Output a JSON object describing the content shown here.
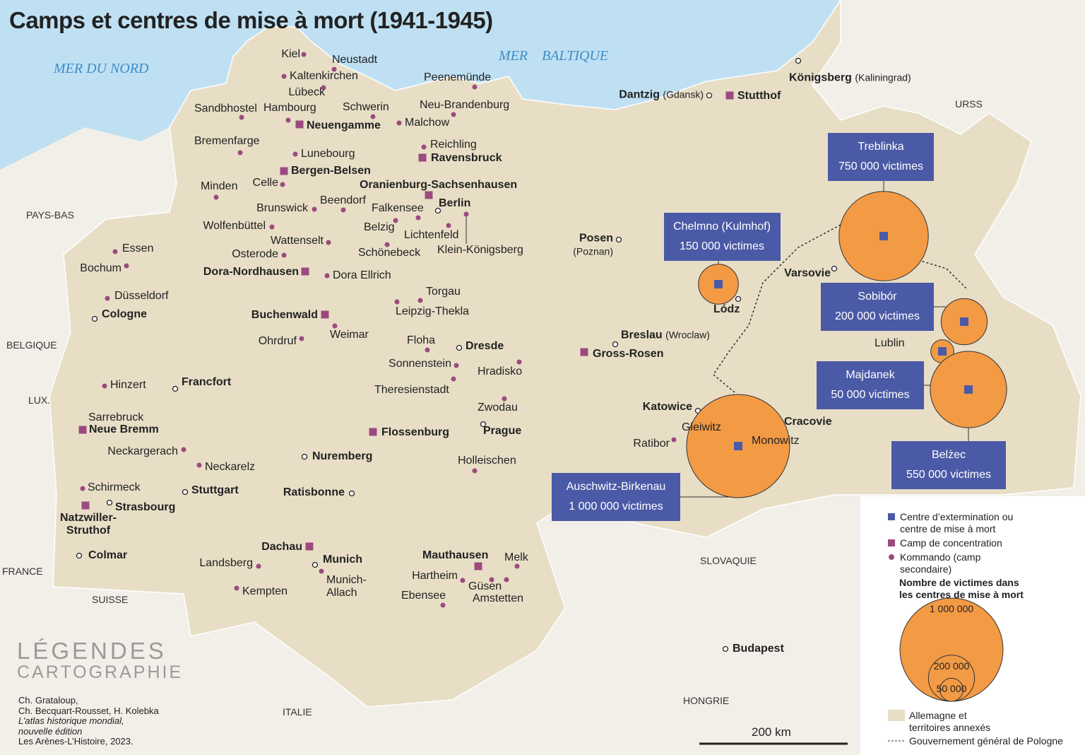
{
  "title": "Camps et centres de mise à mort (1941-1945)",
  "seas": [
    "MER DU NORD",
    "MER    BALTIQUE"
  ],
  "countries": [
    "PAYS-BAS",
    "BELGIQUE",
    "LUX.",
    "FRANCE",
    "SUISSE",
    "ITALIE",
    "HONGRIE",
    "SLOVAQUIE",
    "URSS"
  ],
  "places": [
    {
      "name": "Kiel",
      "kind": "kommando"
    },
    {
      "name": "Neustadt",
      "kind": "kommando"
    },
    {
      "name": "Kaltenkirchen",
      "kind": "kommando"
    },
    {
      "name": "Lübeck",
      "kind": "kommando"
    },
    {
      "name": "Sandbhostel",
      "kind": "kommando"
    },
    {
      "name": "Hambourg",
      "kind": "kommando"
    },
    {
      "name": "Schwerin",
      "kind": "kommando"
    },
    {
      "name": "Malchow",
      "kind": "kommando"
    },
    {
      "name": "Peenemünde",
      "kind": "kommando"
    },
    {
      "name": "Neu-Brandenburg",
      "kind": "kommando"
    },
    {
      "name": "Reichling",
      "kind": "kommando"
    },
    {
      "name": "Bremenfarge",
      "kind": "kommando"
    },
    {
      "name": "Lunebourg",
      "kind": "kommando"
    },
    {
      "name": "Celle",
      "kind": "kommando"
    },
    {
      "name": "Minden",
      "kind": "kommando"
    },
    {
      "name": "Brunswick",
      "kind": "kommando"
    },
    {
      "name": "Beendorf",
      "kind": "kommando"
    },
    {
      "name": "Falkensee",
      "kind": "kommando"
    },
    {
      "name": "Belzig",
      "kind": "kommando"
    },
    {
      "name": "Lichtenfeld",
      "kind": "kommando"
    },
    {
      "name": "Klein-Königsberg",
      "kind": "kommando"
    },
    {
      "name": "Wolfenbüttel",
      "kind": "kommando"
    },
    {
      "name": "Wattenselt",
      "kind": "kommando"
    },
    {
      "name": "Schönebeck",
      "kind": "kommando"
    },
    {
      "name": "Osterode",
      "kind": "kommando"
    },
    {
      "name": "Dora Ellrich",
      "kind": "kommando"
    },
    {
      "name": "Essen",
      "kind": "kommando"
    },
    {
      "name": "Bochum",
      "kind": "kommando"
    },
    {
      "name": "Düsseldorf",
      "kind": "kommando"
    },
    {
      "name": "Torgau",
      "kind": "kommando"
    },
    {
      "name": "Leipzig-Thekla",
      "kind": "kommando"
    },
    {
      "name": "Weimar",
      "kind": "kommando"
    },
    {
      "name": "Ohrdruf",
      "kind": "kommando"
    },
    {
      "name": "Floha",
      "kind": "kommando"
    },
    {
      "name": "Sonnenstein",
      "kind": "kommando"
    },
    {
      "name": "Hradisko",
      "kind": "kommando"
    },
    {
      "name": "Theresienstadt",
      "kind": "kommando"
    },
    {
      "name": "Zwodau",
      "kind": "kommando"
    },
    {
      "name": "Hinzert",
      "kind": "kommando"
    },
    {
      "name": "Neckargerach",
      "kind": "kommando"
    },
    {
      "name": "Neckarelz",
      "kind": "kommando"
    },
    {
      "name": "Holleischen",
      "kind": "kommando"
    },
    {
      "name": "Schirmeck",
      "kind": "kommando"
    },
    {
      "name": "Landsberg",
      "kind": "kommando"
    },
    {
      "name": "Kempten",
      "kind": "kommando"
    },
    {
      "name": "Hartheim",
      "kind": "kommando"
    },
    {
      "name": "Ebensee",
      "kind": "kommando"
    },
    {
      "name": "Güsen",
      "kind": "kommando"
    },
    {
      "name": "Amstetten",
      "kind": "kommando"
    },
    {
      "name": "Melk",
      "kind": "kommando"
    },
    {
      "name": "Munich-Allach",
      "kind": "kommando"
    },
    {
      "name": "Gleiwitz",
      "kind": "kommando"
    },
    {
      "name": "Ratibor",
      "kind": "kommando"
    },
    {
      "name": "Monowitz",
      "kind": "kommando"
    },
    {
      "name": "Neuengamme",
      "kind": "camp"
    },
    {
      "name": "Ravensbruck",
      "kind": "camp"
    },
    {
      "name": "Bergen-Belsen",
      "kind": "camp"
    },
    {
      "name": "Oranienburg-Sachsenhausen",
      "kind": "camp"
    },
    {
      "name": "Dora-Nordhausen",
      "kind": "camp"
    },
    {
      "name": "Buchenwald",
      "kind": "camp"
    },
    {
      "name": "Gross-Rosen",
      "kind": "camp"
    },
    {
      "name": "Flossenburg",
      "kind": "camp"
    },
    {
      "name": "Neue Bremm",
      "kind": "camp"
    },
    {
      "name": "Natzwiller-Struthof",
      "kind": "camp"
    },
    {
      "name": "Dachau",
      "kind": "camp"
    },
    {
      "name": "Mauthausen",
      "kind": "camp"
    },
    {
      "name": "Stutthof",
      "kind": "camp"
    },
    {
      "name": "Königsberg",
      "alt": "(Kaliningrad)",
      "kind": "city"
    },
    {
      "name": "Dantzig",
      "alt": "(Gdansk)",
      "kind": "city"
    },
    {
      "name": "Posen",
      "alt": "(Poznan)",
      "kind": "city"
    },
    {
      "name": "Varsovie",
      "kind": "city"
    },
    {
      "name": "Lódz",
      "kind": "city"
    },
    {
      "name": "Breslau",
      "alt": "(Wroclaw)",
      "kind": "city"
    },
    {
      "name": "Katowice",
      "kind": "city"
    },
    {
      "name": "Cracovie",
      "kind": "city"
    },
    {
      "name": "Berlin",
      "kind": "city"
    },
    {
      "name": "Cologne",
      "kind": "city"
    },
    {
      "name": "Francfort",
      "kind": "city"
    },
    {
      "name": "Dresde",
      "kind": "city"
    },
    {
      "name": "Prague",
      "kind": "city"
    },
    {
      "name": "Nuremberg",
      "kind": "city"
    },
    {
      "name": "Ratisbonne",
      "kind": "city"
    },
    {
      "name": "Stuttgart",
      "kind": "city"
    },
    {
      "name": "Strasbourg",
      "kind": "city"
    },
    {
      "name": "Colmar",
      "kind": "city"
    },
    {
      "name": "Munich",
      "kind": "city"
    },
    {
      "name": "Budapest",
      "kind": "city"
    },
    {
      "name": "Sarrebruck",
      "kind": "label"
    },
    {
      "name": "Lublin",
      "kind": "label"
    }
  ],
  "extermination": [
    {
      "name": "Treblinka",
      "victims": 750000,
      "victims_label": "750 000 victimes"
    },
    {
      "name": "Chelmno (Kulmhof)",
      "victims": 150000,
      "victims_label": "150 000 victimes"
    },
    {
      "name": "Sobibór",
      "victims": 200000,
      "victims_label": "200 000 victimes"
    },
    {
      "name": "Majdanek",
      "victims": 50000,
      "victims_label": "50 000 victimes"
    },
    {
      "name": "Belżec",
      "victims": 550000,
      "victims_label": "550 000 victimes"
    },
    {
      "name": "Auschwitz-Birkenau",
      "victims": 1000000,
      "victims_label": "1 000 000 victimes"
    }
  ],
  "legend": {
    "items": [
      "Centre d’extermination ou centre de mise à mort",
      "Camp de concentration",
      "Kommando (camp secondaire)"
    ],
    "size_title": "Nombre de victimes dans les centres de mise à mort",
    "sizes": [
      {
        "value": 1000000,
        "label": "1 000 000"
      },
      {
        "value": 200000,
        "label": "200 000"
      },
      {
        "value": 50000,
        "label": "50 000"
      }
    ],
    "territory": "Allemagne et territoires annexés",
    "border": "Gouvernement général de Pologne"
  },
  "scale": "200 km",
  "logo": [
    "LÉGENDES",
    "CARTOGRAPHIE"
  ],
  "credits": [
    "Ch. Grataloup,",
    "Ch. Becquart-Rousset, H. Kolebka",
    "L’atlas historique mondial,",
    "nouvelle édition",
    "Les Arènes-L’Histoire, 2023."
  ]
}
